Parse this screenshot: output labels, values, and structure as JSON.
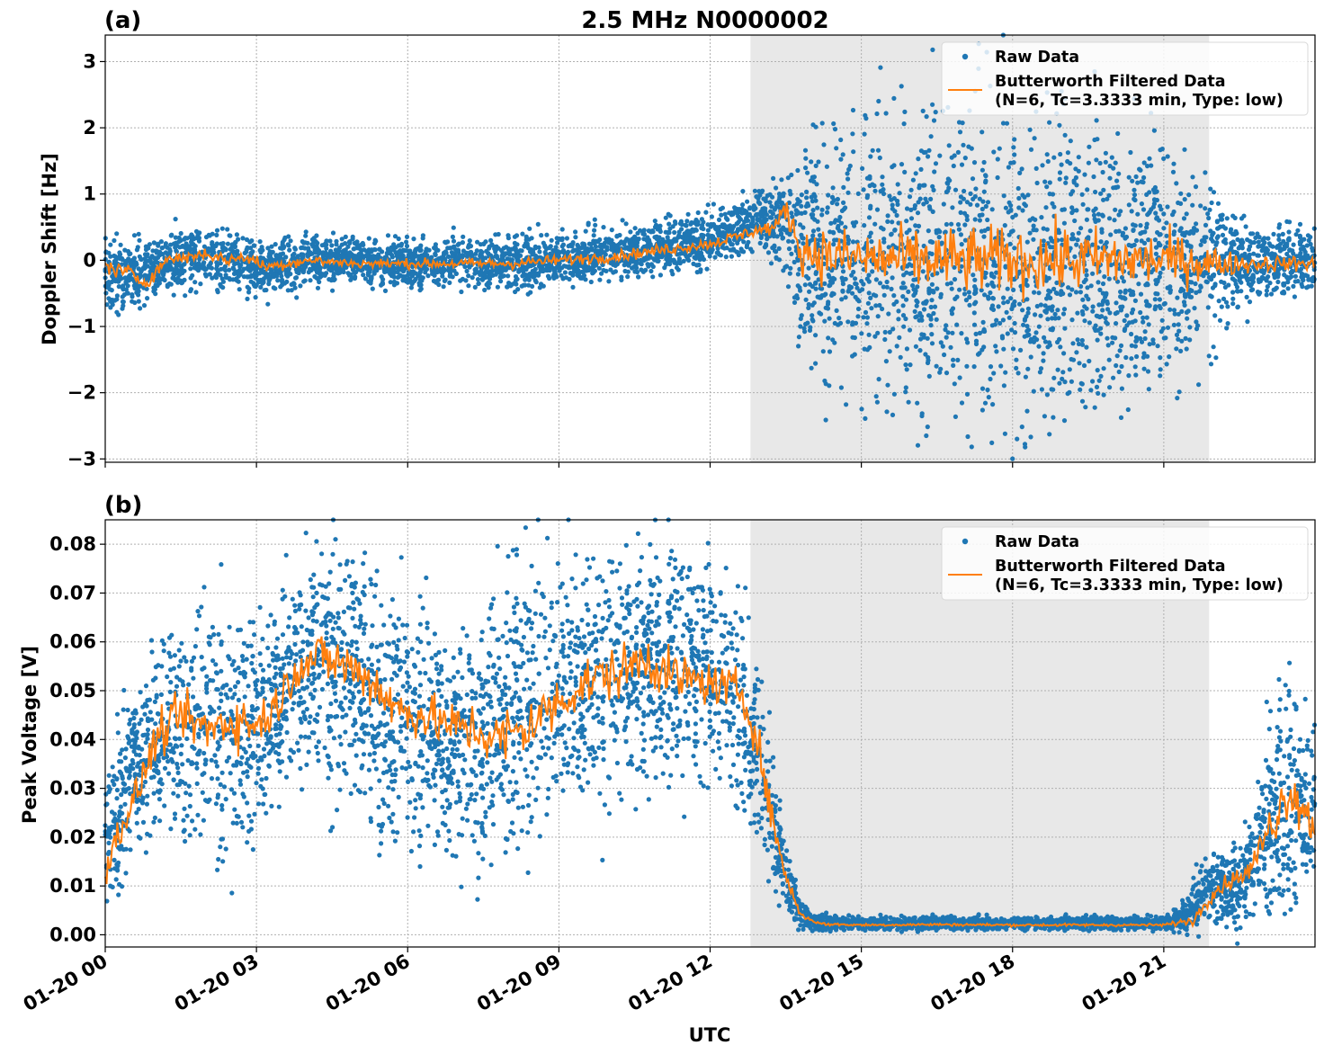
{
  "figure": {
    "title": "2.5 MHz N0000002",
    "x_axis_label": "UTC"
  },
  "colors": {
    "raw": "#1f77b4",
    "filtered": "#ff7f0e",
    "shade": "#e8e8e8",
    "grid": "#b0b0b0"
  },
  "chart_data": [
    {
      "type": "scatter",
      "panel_label": "(a)",
      "title": "2.5 MHz N0000002",
      "xlabel": "UTC",
      "ylabel": "Doppler Shift [Hz]",
      "xlim": [
        "2024-01-20 00:00",
        "2024-01-20 24:00"
      ],
      "ylim": [
        -3.05,
        3.4
      ],
      "y_ticks": [
        -3,
        -2,
        -1,
        0,
        1,
        2,
        3
      ],
      "y_tick_labels": [
        "−3",
        "−2",
        "−1",
        "0",
        "1",
        "2",
        "3"
      ],
      "grid": true,
      "legend_position": "upper-right",
      "shaded_interval_hours": [
        12.8,
        21.9
      ],
      "series": [
        {
          "name": "Raw Data",
          "style": "points",
          "envelope_hours": [
            0,
            0.5,
            1,
            1.5,
            2,
            2.5,
            3,
            4,
            5,
            6,
            7,
            8,
            9,
            10,
            11,
            12,
            12.5,
            13,
            13.4,
            13.7,
            14,
            15,
            16,
            17,
            18,
            19,
            20,
            21,
            21.9,
            22.3,
            23,
            24
          ],
          "envelope_lower": [
            -0.6,
            -0.75,
            -0.5,
            -0.4,
            -0.35,
            -0.35,
            -0.55,
            -0.35,
            -0.3,
            -0.35,
            -0.35,
            -0.4,
            -0.3,
            -0.25,
            -0.15,
            -0.05,
            0.1,
            0.25,
            0.05,
            -0.9,
            -1.5,
            -1.9,
            -2.0,
            -2.1,
            -2.2,
            -2.2,
            -2.0,
            -1.7,
            -1.3,
            -0.8,
            -0.55,
            -0.5
          ],
          "envelope_upper": [
            0.35,
            0.2,
            0.3,
            0.4,
            0.45,
            0.4,
            0.2,
            0.3,
            0.3,
            0.25,
            0.3,
            0.3,
            0.35,
            0.45,
            0.55,
            0.65,
            0.85,
            1.05,
            1.2,
            1.45,
            1.75,
            1.9,
            2.0,
            2.1,
            2.0,
            1.95,
            1.85,
            1.7,
            1.2,
            0.7,
            0.5,
            0.4
          ]
        },
        {
          "name": "Butterworth Filtered Data\n(N=6, Tc=3.3333 min, Type: low)",
          "style": "line",
          "x_hours": [
            0,
            0.5,
            0.8,
            1.2,
            1.6,
            2,
            2.4,
            2.8,
            3.2,
            3.6,
            4,
            5,
            6,
            7,
            8,
            9,
            10,
            11,
            12,
            12.5,
            12.9,
            13.3,
            13.5,
            13.8,
            14.5,
            16,
            18,
            20,
            21.5,
            21.9,
            22.5,
            23.5,
            24
          ],
          "y": [
            -0.1,
            -0.2,
            -0.35,
            0.0,
            0.05,
            0.1,
            0.0,
            0.05,
            -0.1,
            -0.05,
            0.0,
            -0.05,
            -0.05,
            -0.05,
            -0.05,
            0.0,
            0.05,
            0.15,
            0.25,
            0.35,
            0.45,
            0.5,
            0.8,
            0.15,
            0.05,
            0.0,
            0.0,
            0.0,
            0.0,
            -0.05,
            -0.05,
            -0.05,
            -0.05
          ]
        }
      ]
    },
    {
      "type": "scatter",
      "panel_label": "(b)",
      "xlabel": "UTC",
      "ylabel": "Peak Voltage [V]",
      "xlim": [
        "2024-01-20 00:00",
        "2024-01-20 24:00"
      ],
      "ylim": [
        -0.0025,
        0.085
      ],
      "y_ticks": [
        0,
        0.01,
        0.02,
        0.03,
        0.04,
        0.05,
        0.06,
        0.07,
        0.08
      ],
      "y_tick_labels": [
        "0.00",
        "0.01",
        "0.02",
        "0.03",
        "0.04",
        "0.05",
        "0.06",
        "0.07",
        "0.08"
      ],
      "x_ticks_hours": [
        0,
        3,
        6,
        9,
        12,
        15,
        18,
        21
      ],
      "x_tick_labels": [
        "01-20 00",
        "01-20 03",
        "01-20 06",
        "01-20 09",
        "01-20 12",
        "01-20 15",
        "01-20 18",
        "01-20 21"
      ],
      "grid": true,
      "legend_position": "upper-right",
      "shaded_interval_hours": [
        12.8,
        21.9
      ],
      "series": [
        {
          "name": "Raw Data",
          "style": "points",
          "envelope_hours": [
            0,
            0.4,
            0.8,
            1.2,
            2,
            2.5,
            3,
            3.4,
            3.8,
            4.5,
            5,
            5.5,
            6,
            6.5,
            7,
            7.5,
            8,
            8.5,
            9,
            9.5,
            10,
            10.7,
            11.5,
            12,
            12.6,
            13,
            13.3,
            13.7,
            14,
            15,
            17,
            19,
            21,
            21.5,
            21.9,
            22.3,
            22.8,
            23.3,
            24
          ],
          "envelope_lower": [
            0.008,
            0.015,
            0.02,
            0.022,
            0.02,
            0.018,
            0.022,
            0.03,
            0.035,
            0.032,
            0.028,
            0.025,
            0.022,
            0.02,
            0.018,
            0.015,
            0.02,
            0.025,
            0.028,
            0.03,
            0.032,
            0.033,
            0.035,
            0.035,
            0.03,
            0.018,
            0.008,
            0.002,
            0.0012,
            0.0012,
            0.0012,
            0.0012,
            0.0012,
            0.0012,
            0.002,
            0.003,
            0.004,
            0.006,
            0.01
          ],
          "envelope_upper": [
            0.035,
            0.045,
            0.055,
            0.06,
            0.063,
            0.065,
            0.062,
            0.068,
            0.073,
            0.078,
            0.074,
            0.07,
            0.066,
            0.06,
            0.058,
            0.065,
            0.072,
            0.075,
            0.074,
            0.073,
            0.076,
            0.079,
            0.076,
            0.07,
            0.065,
            0.055,
            0.03,
            0.01,
            0.004,
            0.0035,
            0.0035,
            0.0035,
            0.0035,
            0.008,
            0.017,
            0.016,
            0.025,
            0.052,
            0.045
          ]
        },
        {
          "name": "Butterworth Filtered Data\n(N=6, Tc=3.3333 min, Type: low)",
          "style": "line",
          "x_hours": [
            0,
            0.3,
            0.6,
            1.0,
            1.5,
            2,
            2.5,
            3,
            3.4,
            3.8,
            4.3,
            4.8,
            5.3,
            5.8,
            6.3,
            6.8,
            7.3,
            7.8,
            8.3,
            8.8,
            9.3,
            9.8,
            10.3,
            10.7,
            11.2,
            11.7,
            12.2,
            12.6,
            12.9,
            13.2,
            13.5,
            13.8,
            14.2,
            15,
            16.5,
            18,
            19.5,
            21,
            21.6,
            21.9,
            22.3,
            22.7,
            23.1,
            23.5,
            24
          ],
          "y": [
            0.013,
            0.022,
            0.028,
            0.04,
            0.045,
            0.042,
            0.044,
            0.043,
            0.047,
            0.055,
            0.057,
            0.055,
            0.052,
            0.046,
            0.045,
            0.043,
            0.042,
            0.04,
            0.042,
            0.046,
            0.05,
            0.053,
            0.054,
            0.057,
            0.053,
            0.052,
            0.051,
            0.05,
            0.042,
            0.025,
            0.012,
            0.004,
            0.0022,
            0.002,
            0.0021,
            0.002,
            0.002,
            0.002,
            0.003,
            0.008,
            0.011,
            0.013,
            0.022,
            0.03,
            0.022
          ]
        }
      ]
    }
  ],
  "legend": {
    "raw_label": "Raw Data",
    "filtered_label_line1": "Butterworth Filtered Data",
    "filtered_label_line2": "(N=6, Tc=3.3333 min, Type: low)"
  }
}
